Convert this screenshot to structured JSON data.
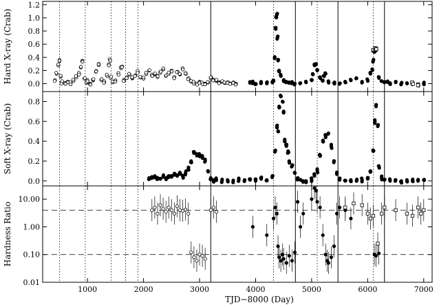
{
  "chart_data": [
    {
      "type": "scatter",
      "ylabel": "Hard X-ray (Crab)",
      "ylim": [
        -0.12,
        1.25
      ],
      "yscale": "linear",
      "yticks": [
        0.0,
        0.2,
        0.4,
        0.6,
        0.8,
        1.0,
        1.2
      ],
      "ytick_labels": [
        "0.0",
        "0.2",
        "0.4",
        "0.6",
        "0.8",
        "1.0",
        "1.2"
      ],
      "series": [
        {
          "marker": "open-circle",
          "x": [
            420,
            450,
            480,
            500,
            520,
            540,
            600,
            650,
            700,
            750,
            800,
            850,
            880,
            910,
            950,
            980,
            1000,
            1050,
            1100,
            1150,
            1200,
            1250,
            1300,
            1350,
            1380,
            1400,
            1420,
            1450,
            1500,
            1550,
            1600,
            1620,
            1650,
            1700,
            1750,
            1800,
            1850,
            1900,
            1950,
            2000,
            2050,
            2100,
            2150,
            2200,
            2250,
            2300,
            2350,
            2400,
            2450,
            2500,
            2550,
            2600,
            2650,
            2700,
            2750,
            2800,
            2850,
            2900,
            2950,
            3000,
            3050,
            3100,
            3150,
            3200,
            3250,
            3300,
            3350,
            3400,
            3450,
            3500,
            3550,
            3600,
            3650
          ],
          "y": [
            0.05,
            0.15,
            0.28,
            0.36,
            0.12,
            0.02,
            0.01,
            0.03,
            0.0,
            0.05,
            0.1,
            0.15,
            0.25,
            0.35,
            0.08,
            0.02,
            0.04,
            0.0,
            0.05,
            0.18,
            0.3,
            0.06,
            0.02,
            0.12,
            0.28,
            0.36,
            0.1,
            0.02,
            0.05,
            0.15,
            0.25,
            0.26,
            0.06,
            0.1,
            0.14,
            0.08,
            0.12,
            0.18,
            0.1,
            0.08,
            0.15,
            0.2,
            0.12,
            0.14,
            0.1,
            0.18,
            0.22,
            0.12,
            0.15,
            0.2,
            0.1,
            0.18,
            0.14,
            0.22,
            0.16,
            0.08,
            0.04,
            0.02,
            0.0,
            0.03,
            0.01,
            0.0,
            0.02,
            0.08,
            0.06,
            0.04,
            0.02,
            0.03,
            0.01,
            0.02,
            0.0,
            0.01,
            0.0
          ]
        },
        {
          "marker": "filled-circle",
          "x": [
            3900,
            3950,
            4000,
            4100,
            4200,
            4300,
            4320,
            4340,
            4360,
            4370,
            4380,
            4390,
            4400,
            4420,
            4450,
            4500,
            4550,
            4600,
            4650,
            4700,
            4800,
            4900,
            5000,
            5020,
            5050,
            5080,
            5100,
            5150,
            5200,
            5220,
            5250,
            5300,
            5400,
            5500,
            5600,
            5700,
            5800,
            5900,
            6000,
            6050,
            6080,
            6100,
            6120,
            6150,
            6200,
            6250,
            6300,
            6350,
            6400,
            6500,
            6600,
            6700,
            6800,
            6900,
            7000
          ],
          "y": [
            0.01,
            0.02,
            0.0,
            0.01,
            0.02,
            0.03,
            0.05,
            0.4,
            0.85,
            1.02,
            1.05,
            0.7,
            0.35,
            0.2,
            0.12,
            0.05,
            0.03,
            0.02,
            0.01,
            0.0,
            0.01,
            0.02,
            0.05,
            0.15,
            0.28,
            0.3,
            0.2,
            0.1,
            0.05,
            0.12,
            0.15,
            0.03,
            0.01,
            0.0,
            0.02,
            0.05,
            0.08,
            0.03,
            0.05,
            0.15,
            0.22,
            0.35,
            0.5,
            0.52,
            0.1,
            0.04,
            0.02,
            0.03,
            0.01,
            0.02,
            0.0,
            0.01,
            0.0,
            -0.01,
            0.0
          ]
        },
        {
          "marker": "open-square",
          "x": [
            6100,
            6130,
            6150,
            6800,
            6900
          ],
          "y": [
            0.5,
            0.53,
            0.52,
            0.01,
            -0.01
          ]
        }
      ]
    },
    {
      "type": "scatter",
      "ylabel": "Soft X-ray (Crab)",
      "ylim": [
        -0.05,
        0.9
      ],
      "yscale": "linear",
      "yticks": [
        0.0,
        0.2,
        0.4,
        0.6,
        0.8
      ],
      "ytick_labels": [
        "0.0",
        "0.2",
        "0.4",
        "0.6",
        "0.8"
      ],
      "series": [
        {
          "marker": "filled-circle",
          "x": [
            2100,
            2150,
            2200,
            2250,
            2300,
            2350,
            2400,
            2450,
            2500,
            2550,
            2600,
            2650,
            2700,
            2750,
            2800,
            2850,
            2900,
            2950,
            3000,
            3050,
            3100,
            3150,
            3200,
            3250,
            3300,
            3400,
            3500,
            3600,
            3700,
            3800,
            3900,
            4000,
            4100,
            4200,
            4300,
            4350,
            4380,
            4400,
            4420,
            4450,
            4480,
            4500,
            4520,
            4550,
            4580,
            4600,
            4650,
            4700,
            4750,
            4800,
            4850,
            4900,
            5000,
            5050,
            5100,
            5150,
            5200,
            5250,
            5300,
            5350,
            5400,
            5450,
            5500,
            5600,
            5700,
            5800,
            5900,
            6000,
            6050,
            6100,
            6130,
            6150,
            6180,
            6200,
            6250,
            6300,
            6400,
            6500,
            6600,
            6700,
            6800,
            6900,
            7000
          ],
          "y": [
            0.03,
            0.04,
            0.05,
            0.03,
            0.02,
            0.04,
            0.03,
            0.05,
            0.04,
            0.06,
            0.05,
            0.07,
            0.05,
            0.08,
            0.12,
            0.2,
            0.28,
            0.27,
            0.26,
            0.25,
            0.2,
            0.1,
            0.03,
            0.01,
            0.01,
            0.0,
            0.01,
            0.0,
            0.01,
            0.0,
            0.01,
            0.0,
            0.02,
            0.01,
            0.05,
            0.3,
            0.55,
            0.5,
            0.75,
            0.85,
            0.8,
            0.7,
            0.4,
            0.35,
            0.3,
            0.2,
            0.15,
            0.08,
            0.03,
            0.01,
            0.0,
            0.0,
            0.01,
            0.05,
            0.1,
            0.25,
            0.4,
            0.45,
            0.48,
            0.35,
            0.2,
            0.08,
            0.01,
            0.0,
            0.01,
            0.0,
            0.01,
            0.02,
            0.1,
            0.3,
            0.6,
            0.75,
            0.55,
            0.15,
            0.03,
            0.01,
            0.0,
            0.01,
            0.0,
            0.01,
            0.0,
            0.0,
            0.01
          ]
        }
      ]
    },
    {
      "type": "scatter",
      "xlabel": "TJD−8000 (Day)",
      "ylabel": "Hardness Ratio",
      "ylim": [
        0.01,
        30
      ],
      "yscale": "log",
      "xlim": [
        200,
        7150
      ],
      "xticks": [
        1000,
        2000,
        3000,
        4000,
        5000,
        6000,
        7000
      ],
      "xtick_labels": [
        "1000",
        "2000",
        "3000",
        "4000",
        "5000",
        "6000",
        "7000"
      ],
      "yticks": [
        0.01,
        0.1,
        1,
        10
      ],
      "ytick_labels": [
        "0.01",
        "0.10",
        "1.00",
        "10.00"
      ],
      "hlines": [
        4.0,
        0.1
      ],
      "series": [
        {
          "marker": "open-circle-errorbar",
          "x": [
            2150,
            2200,
            2250,
            2300,
            2350,
            2400,
            2450,
            2500,
            2550,
            2600,
            2650,
            2700,
            2750,
            2800,
            3200,
            3250,
            3300
          ],
          "y": [
            4.0,
            5.0,
            3.0,
            6.0,
            4.5,
            3.5,
            5.0,
            4.0,
            3.0,
            5.5,
            4.0,
            3.8,
            4.2,
            3.0,
            4.0,
            5.0,
            3.5
          ]
        },
        {
          "marker": "open-circle-errorbar",
          "x": [
            2850,
            2900,
            2950,
            3000,
            3050,
            3100
          ],
          "y": [
            0.12,
            0.08,
            0.06,
            0.1,
            0.09,
            0.07
          ]
        },
        {
          "marker": "filled-circle-errorbar",
          "x": [
            3950,
            4200,
            4320,
            4350,
            4380,
            4400,
            4420,
            4450,
            4480,
            4500,
            4550,
            4600,
            4650,
            4700,
            4750,
            4800,
            4850,
            5000,
            5050,
            5080,
            5100,
            5150,
            5200,
            5250,
            5280,
            5300,
            5350,
            5400,
            5450,
            5500,
            5600,
            5700,
            6120,
            6150,
            6200
          ],
          "y": [
            1.0,
            0.5,
            2.0,
            5.0,
            3.0,
            0.2,
            0.08,
            0.06,
            0.1,
            0.07,
            0.05,
            0.09,
            0.06,
            0.12,
            8.0,
            1.0,
            3.0,
            10.0,
            25.0,
            20.0,
            8.0,
            5.0,
            0.5,
            0.1,
            0.06,
            0.05,
            0.08,
            0.2,
            3.0,
            5.0,
            4.0,
            2.0,
            0.1,
            0.09,
            0.11
          ]
        },
        {
          "marker": "open-square-errorbar",
          "x": [
            5600,
            5750,
            5900,
            6000,
            6050,
            6100,
            6180,
            6250,
            6300,
            6500,
            6700,
            6800,
            6900,
            6950,
            7000
          ],
          "y": [
            5.0,
            7.0,
            6.0,
            3.0,
            2.0,
            2.5,
            0.25,
            3.0,
            5.0,
            4.0,
            3.0,
            2.5,
            5.0,
            3.0,
            4.0
          ]
        }
      ]
    }
  ],
  "vlines": {
    "dotted": [
      500,
      960,
      1420,
      1680,
      1900,
      4320,
      5100,
      6100
    ],
    "solid": [
      3200,
      4710,
      5470,
      6300
    ]
  }
}
